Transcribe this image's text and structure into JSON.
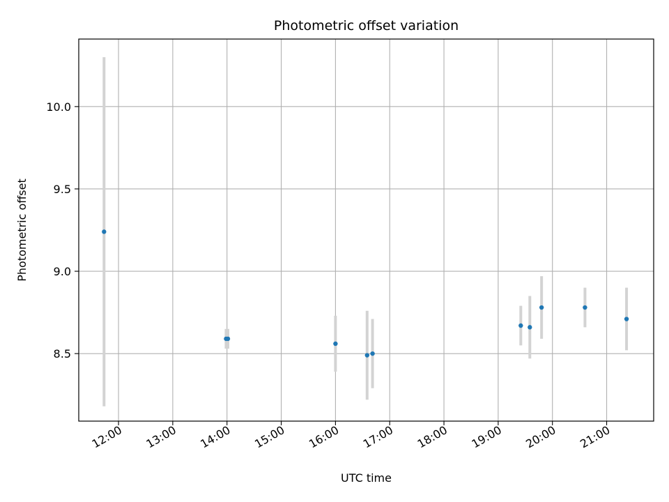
{
  "chart_data": {
    "type": "scatter",
    "title": "Photometric offset variation",
    "xlabel": "UTC time",
    "ylabel": "Photometric offset",
    "x_tick_labels": [
      "12:00",
      "13:00",
      "14:00",
      "15:00",
      "16:00",
      "17:00",
      "18:00",
      "19:00",
      "20:00",
      "21:00"
    ],
    "y_tick_labels": [
      "8.5",
      "9.0",
      "9.5",
      "10.0"
    ],
    "y_ticks": [
      8.5,
      9.0,
      9.5,
      10.0
    ],
    "xlim": [
      "11:16",
      "21:52"
    ],
    "ylim": [
      8.09,
      10.41
    ],
    "grid": true,
    "colors": {
      "marker": "#1f77b4",
      "errorbar": "#d3d3d3",
      "grid": "#b0b0b0"
    },
    "points": [
      {
        "time": "11:44",
        "offset": 9.24,
        "error": 1.06
      },
      {
        "time": "13:59",
        "offset": 8.59,
        "error": 0.06
      },
      {
        "time": "14:01",
        "offset": 8.59,
        "error": 0.06
      },
      {
        "time": "16:00",
        "offset": 8.56,
        "error": 0.17
      },
      {
        "time": "16:35",
        "offset": 8.49,
        "error": 0.27
      },
      {
        "time": "16:41",
        "offset": 8.5,
        "error": 0.21
      },
      {
        "time": "19:25",
        "offset": 8.67,
        "error": 0.12
      },
      {
        "time": "19:35",
        "offset": 8.66,
        "error": 0.19
      },
      {
        "time": "19:48",
        "offset": 8.78,
        "error": 0.19
      },
      {
        "time": "20:36",
        "offset": 8.78,
        "error": 0.12
      },
      {
        "time": "21:22",
        "offset": 8.71,
        "error": 0.19
      }
    ]
  }
}
